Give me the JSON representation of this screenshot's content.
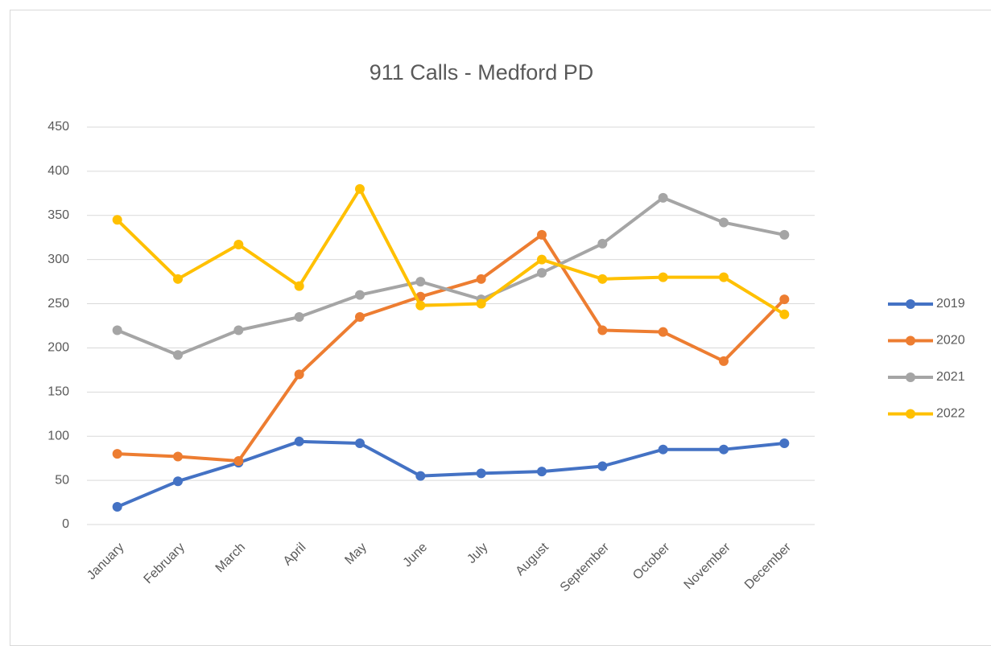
{
  "chart_data": {
    "type": "line",
    "title": "911 Calls - Medford PD",
    "categories": [
      "January",
      "February",
      "March",
      "April",
      "May",
      "June",
      "July",
      "August",
      "September",
      "October",
      "November",
      "December"
    ],
    "series": [
      {
        "name": "2019",
        "color": "#4472c4",
        "values": [
          20,
          49,
          70,
          94,
          92,
          55,
          58,
          60,
          66,
          85,
          85,
          92
        ]
      },
      {
        "name": "2020",
        "color": "#ed7d31",
        "values": [
          80,
          77,
          72,
          170,
          235,
          258,
          278,
          328,
          220,
          218,
          185,
          255
        ]
      },
      {
        "name": "2021",
        "color": "#a5a5a5",
        "values": [
          220,
          192,
          220,
          235,
          260,
          275,
          255,
          285,
          318,
          370,
          342,
          328
        ]
      },
      {
        "name": "2022",
        "color": "#ffc000",
        "values": [
          345,
          278,
          317,
          270,
          380,
          248,
          250,
          300,
          278,
          280,
          280,
          238
        ]
      }
    ],
    "ylim": [
      0,
      450
    ],
    "yticks": [
      0,
      50,
      100,
      150,
      200,
      250,
      300,
      350,
      400,
      450
    ],
    "grid": true,
    "legend": "right"
  }
}
